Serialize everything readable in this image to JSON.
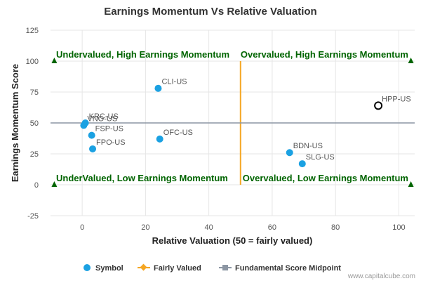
{
  "chart_data": {
    "type": "scatter",
    "title": "Earnings Momentum Vs Relative Valuation",
    "xlabel": "Relative Valuation (50 = fairly valued)",
    "ylabel": "Earnings Momentum Score",
    "xlim": [
      -10,
      105
    ],
    "ylim": [
      -25,
      125
    ],
    "xticks": [
      0,
      20,
      40,
      60,
      80,
      100
    ],
    "yticks": [
      -25,
      0,
      25,
      50,
      75,
      100,
      125
    ],
    "fairly_valued_x": 50,
    "midpoint_y": 50,
    "quadrants": {
      "top_left": "Undervalued, High Earnings Momentum",
      "top_right": "Overvalued, High Earnings Momentum",
      "bottom_left": "UnderValued, Low Earnings Momentum",
      "bottom_right": "Overvalued, Low Earnings Momentum"
    },
    "points": [
      {
        "label": "CLI-US",
        "x": 24,
        "y": 78,
        "highlight": false
      },
      {
        "label": "KRC-US",
        "x": 1,
        "y": 50,
        "highlight": false
      },
      {
        "label": "VNO-US",
        "x": 0.5,
        "y": 48,
        "highlight": false
      },
      {
        "label": "FSP-US",
        "x": 3,
        "y": 40,
        "highlight": false
      },
      {
        "label": "FPO-US",
        "x": 3.3,
        "y": 29,
        "highlight": false
      },
      {
        "label": "OFC-US",
        "x": 24.5,
        "y": 37,
        "highlight": false
      },
      {
        "label": "BDN-US",
        "x": 65.5,
        "y": 26,
        "highlight": false
      },
      {
        "label": "SLG-US",
        "x": 69.5,
        "y": 17,
        "highlight": false
      },
      {
        "label": "HPP-US",
        "x": 93.5,
        "y": 64,
        "highlight": true
      }
    ],
    "legend": [
      {
        "key": "symbol",
        "label": "Symbol"
      },
      {
        "key": "fair",
        "label": "Fairly Valued"
      },
      {
        "key": "mid",
        "label": "Fundamental Score Midpoint"
      }
    ],
    "credit": "www.capitalcube.com"
  },
  "colors": {
    "point": "#1ba1e2",
    "fair_line": "#f5a623",
    "midpoint_line": "#8c96a3",
    "quadrant_text": "#006400",
    "marker": "#006400"
  }
}
